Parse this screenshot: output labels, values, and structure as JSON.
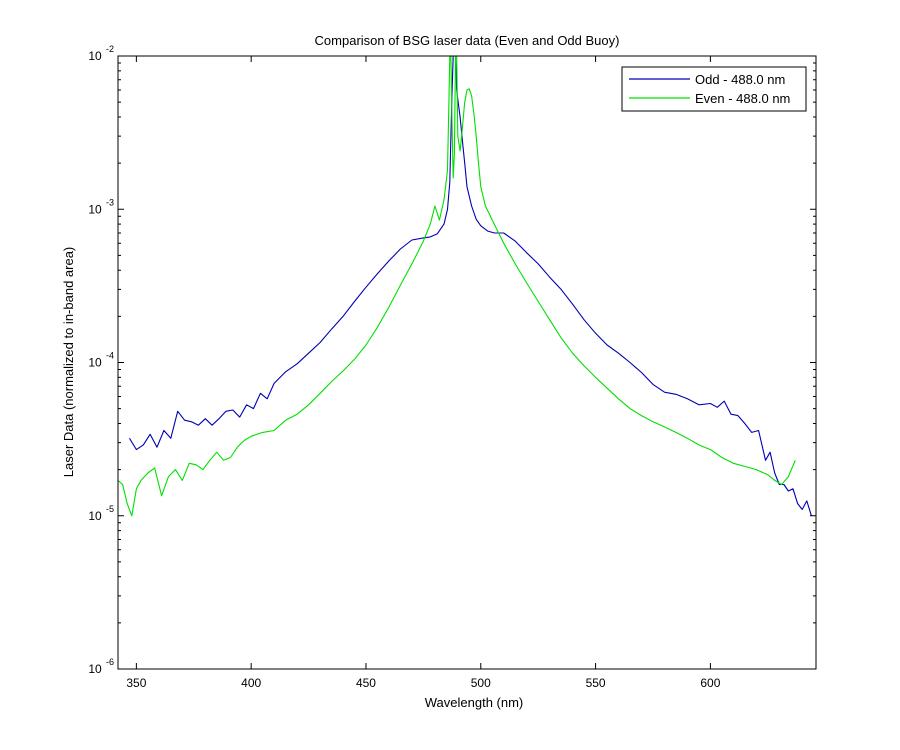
{
  "chart_data": {
    "type": "line",
    "title": "Comparison of BSG laser data (Even and Odd Buoy)",
    "xlabel": "Wavelength (nm)",
    "ylabel": "Laser Data (normalized to in-band area)",
    "xlim": [
      342,
      646
    ],
    "ylim": [
      1e-06,
      0.01
    ],
    "yscale": "log",
    "grid": false,
    "legend_position": "top-right",
    "xticks": [
      350,
      400,
      450,
      500,
      550,
      600
    ],
    "xtick_labels": [
      "350",
      "400",
      "450",
      "500",
      "550",
      "600"
    ],
    "yticks": [
      1e-06,
      1e-05,
      0.0001,
      0.001,
      0.01
    ],
    "ytick_labels": [
      {
        "base": "10",
        "exp": "-6"
      },
      {
        "base": "10",
        "exp": "-5"
      },
      {
        "base": "10",
        "exp": "-4"
      },
      {
        "base": "10",
        "exp": "-3"
      },
      {
        "base": "10",
        "exp": "-2"
      }
    ],
    "series": [
      {
        "name": "Odd - 488.0 nm",
        "color": "#0000b4",
        "x": [
          347,
          350,
          353,
          356,
          359,
          362,
          365,
          368,
          371,
          374,
          377,
          380,
          383,
          386,
          389,
          392,
          395,
          398,
          401,
          404,
          407,
          410,
          415,
          420,
          425,
          430,
          435,
          440,
          445,
          450,
          455,
          460,
          465,
          470,
          475,
          478,
          481,
          484,
          485.5,
          486.5,
          487,
          487.5,
          488,
          488.5,
          489,
          489.5,
          490,
          491,
          492,
          493,
          494,
          496,
          498,
          500,
          503,
          506,
          510,
          515,
          520,
          525,
          530,
          535,
          540,
          545,
          550,
          555,
          560,
          565,
          570,
          575,
          580,
          585,
          590,
          595,
          600,
          603,
          606,
          609,
          612,
          615,
          618,
          621,
          624,
          626,
          628,
          630,
          632,
          634,
          636,
          638,
          640,
          642,
          644
        ],
        "values": [
          3.2e-05,
          2.7e-05,
          2.9e-05,
          3.4e-05,
          2.8e-05,
          3.6e-05,
          3.2e-05,
          4.8e-05,
          4.2e-05,
          4.1e-05,
          3.9e-05,
          4.3e-05,
          3.9e-05,
          4.3e-05,
          4.8e-05,
          4.9e-05,
          4.4e-05,
          5.3e-05,
          5e-05,
          6.3e-05,
          5.8e-05,
          7.3e-05,
          8.7e-05,
          9.8e-05,
          0.000115,
          0.000135,
          0.000165,
          0.0002,
          0.00025,
          0.00031,
          0.00038,
          0.00046,
          0.00055,
          0.00063,
          0.00065,
          0.00066,
          0.00069,
          0.0008,
          0.001,
          0.0015,
          0.003,
          0.006,
          0.01,
          0.01,
          0.01,
          0.006,
          0.0052,
          0.004,
          0.0028,
          0.002,
          0.0014,
          0.00105,
          0.00086,
          0.00078,
          0.00072,
          0.0007,
          0.0007,
          0.00062,
          0.00052,
          0.00044,
          0.00036,
          0.0003,
          0.00024,
          0.00019,
          0.000155,
          0.00013,
          0.000115,
          0.0001,
          8.6e-05,
          7.2e-05,
          6.4e-05,
          6.2e-05,
          5.8e-05,
          5.3e-05,
          5.4e-05,
          5.1e-05,
          5.6e-05,
          4.6e-05,
          4.5e-05,
          4e-05,
          3.5e-05,
          3.6e-05,
          2.3e-05,
          2.6e-05,
          1.9e-05,
          1.6e-05,
          1.6e-05,
          1.45e-05,
          1.5e-05,
          1.2e-05,
          1.1e-05,
          1.25e-05,
          1e-05
        ]
      },
      {
        "name": "Even - 488.0 nm",
        "color": "#00e000",
        "x": [
          342,
          344,
          346,
          348,
          350,
          352,
          355,
          358,
          361,
          364,
          367,
          370,
          373,
          376,
          379,
          382,
          385,
          388,
          391,
          394,
          397,
          400,
          405,
          410,
          415,
          420,
          425,
          430,
          435,
          440,
          445,
          450,
          455,
          460,
          465,
          470,
          475,
          478,
          480,
          482,
          484,
          485.5,
          486,
          486.5,
          487,
          487.5,
          488,
          488.5,
          489,
          489.5,
          490,
          491,
          492,
          493,
          494,
          495,
          496,
          497,
          498,
          499,
          500,
          502,
          505,
          510,
          515,
          520,
          525,
          530,
          535,
          540,
          545,
          550,
          555,
          560,
          565,
          570,
          575,
          580,
          585,
          590,
          595,
          600,
          605,
          610,
          615,
          620,
          625,
          628,
          631,
          634,
          637
        ],
        "values": [
          1.7e-05,
          1.6e-05,
          1.2e-05,
          1e-05,
          1.5e-05,
          1.7e-05,
          1.9e-05,
          2.05e-05,
          1.35e-05,
          1.8e-05,
          2e-05,
          1.7e-05,
          2.2e-05,
          2.15e-05,
          2e-05,
          2.3e-05,
          2.6e-05,
          2.3e-05,
          2.4e-05,
          2.8e-05,
          3.1e-05,
          3.3e-05,
          3.5e-05,
          3.6e-05,
          4.2e-05,
          4.6e-05,
          5.3e-05,
          6.3e-05,
          7.5e-05,
          8.8e-05,
          0.000105,
          0.00013,
          0.00017,
          0.00023,
          0.00032,
          0.00044,
          0.00062,
          0.0008,
          0.00105,
          0.00085,
          0.00115,
          0.0018,
          0.004,
          0.01,
          0.01,
          0.0035,
          0.0016,
          0.0023,
          0.01,
          0.01,
          0.003,
          0.0024,
          0.0034,
          0.005,
          0.006,
          0.0061,
          0.0055,
          0.0042,
          0.003,
          0.002,
          0.0014,
          0.00105,
          0.00085,
          0.0006,
          0.00044,
          0.00033,
          0.00025,
          0.00019,
          0.000145,
          0.000115,
          9.5e-05,
          8e-05,
          6.8e-05,
          5.8e-05,
          5e-05,
          4.5e-05,
          4.1e-05,
          3.8e-05,
          3.5e-05,
          3.2e-05,
          2.9e-05,
          2.7e-05,
          2.4e-05,
          2.2e-05,
          2.1e-05,
          2e-05,
          1.85e-05,
          1.7e-05,
          1.6e-05,
          1.8e-05,
          2.3e-05
        ]
      }
    ]
  }
}
